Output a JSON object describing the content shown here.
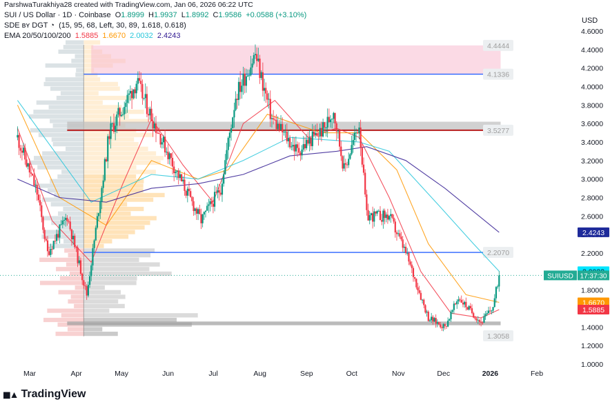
{
  "header": {
    "credit": "ParshwaTurakhiya28 created with TradingView.com, Jan 06, 2026 06:22 UTC",
    "symbol": "SUI / US Dollar · 1D · Coinbase",
    "o_label": "O",
    "o_value": "1.8999",
    "h_label": "H",
    "h_value": "1.9937",
    "l_label": "L",
    "l_value": "1.8992",
    "c_label": "C",
    "c_value": "1.9586",
    "change": "+0.0588 (+3.10%)",
    "sde_label": "SDE ʙʏ DGT ◔",
    "sde_params": "(15, 95, 68, Left, 30, 89, 1.618, 0.618)",
    "ema_label": "EMA 20/50/100/200",
    "ema_values": [
      {
        "value": "1.5885",
        "color": "#f23645"
      },
      {
        "value": "1.6670",
        "color": "#ff9800"
      },
      {
        "value": "2.0032",
        "color": "#26c6da"
      },
      {
        "value": "2.4243",
        "color": "#311b92"
      }
    ]
  },
  "footer": {
    "brand": "TradingView"
  },
  "chart_data": {
    "type": "candlestick",
    "y_axis_label": "USD",
    "y_ticks": [
      "4.6000",
      "4.4000",
      "4.2000",
      "4.0000",
      "3.8000",
      "3.6000",
      "3.4000",
      "3.2000",
      "3.0000",
      "2.8000",
      "2.6000",
      "2.4000",
      "2.2000",
      "2.0000",
      "1.8000",
      "1.6000",
      "1.4000",
      "1.2000",
      "1.0000"
    ],
    "ylim": [
      1.0,
      4.6
    ],
    "x_ticks": [
      "Mar",
      "Apr",
      "May",
      "Jun",
      "Jul",
      "Aug",
      "Sep",
      "Oct",
      "Nov",
      "Dec",
      "2026",
      "Feb"
    ],
    "levels": [
      {
        "label": "4.4444",
        "value": 4.4444
      },
      {
        "label": "4.1336",
        "value": 4.1336
      },
      {
        "label": "3.5277",
        "value": 3.5277
      },
      {
        "label": "2.2070",
        "value": 2.207
      },
      {
        "label": "1.3058",
        "value": 1.3058
      }
    ],
    "price_tags": [
      {
        "label": "2.4243",
        "value": 2.4243,
        "bg": "#1e2a9a",
        "fg": "#ffffff"
      },
      {
        "label": "2.0032",
        "value": 2.0032,
        "bg": "#00e5ff",
        "fg": "#131722"
      },
      {
        "label": "1.6670",
        "value": 1.667,
        "bg": "#ff9800",
        "fg": "#ffffff"
      },
      {
        "label": "1.5885",
        "value": 1.5885,
        "bg": "#f23645",
        "fg": "#ffffff"
      }
    ],
    "last_price": {
      "symbol": "SUIUSD",
      "countdown": "17:37:30",
      "value": 1.9586,
      "color": "#22ab94"
    },
    "colors": {
      "up": "#089981",
      "down": "#f23645",
      "ema20": "#f23645",
      "ema50": "#ff9800",
      "ema100": "#26c6da",
      "ema200": "#311b92",
      "level": "#2962ff"
    },
    "key_points": [
      {
        "date": "2025-02-20",
        "close": 3.45
      },
      {
        "date": "2025-03-05",
        "close": 2.85
      },
      {
        "date": "2025-03-12",
        "close": 2.2
      },
      {
        "date": "2025-03-25",
        "close": 2.6
      },
      {
        "date": "2025-04-07",
        "close": 1.75
      },
      {
        "date": "2025-04-22",
        "close": 3.5
      },
      {
        "date": "2025-05-10",
        "close": 4.05
      },
      {
        "date": "2025-05-22",
        "close": 3.6
      },
      {
        "date": "2025-06-05",
        "close": 3.1
      },
      {
        "date": "2025-06-22",
        "close": 2.55
      },
      {
        "date": "2025-07-05",
        "close": 2.9
      },
      {
        "date": "2025-07-15",
        "close": 3.9
      },
      {
        "date": "2025-07-28",
        "close": 4.35
      },
      {
        "date": "2025-08-08",
        "close": 3.65
      },
      {
        "date": "2025-08-25",
        "close": 3.3
      },
      {
        "date": "2025-09-12",
        "close": 3.55
      },
      {
        "date": "2025-09-18",
        "close": 3.75
      },
      {
        "date": "2025-09-25",
        "close": 3.1
      },
      {
        "date": "2025-10-05",
        "close": 3.6
      },
      {
        "date": "2025-10-10",
        "close": 2.6
      },
      {
        "date": "2025-10-25",
        "close": 2.6
      },
      {
        "date": "2025-11-05",
        "close": 2.2
      },
      {
        "date": "2025-11-20",
        "close": 1.5
      },
      {
        "date": "2025-12-01",
        "close": 1.4
      },
      {
        "date": "2025-12-10",
        "close": 1.72
      },
      {
        "date": "2025-12-25",
        "close": 1.45
      },
      {
        "date": "2026-01-02",
        "close": 1.62
      },
      {
        "date": "2026-01-06",
        "close": 1.9586
      }
    ],
    "ema_points": {
      "ema20": [
        [
          "2025-02-20",
          3.55
        ],
        [
          "2025-03-15",
          2.55
        ],
        [
          "2025-04-10",
          2.1
        ],
        [
          "2025-05-01",
          2.95
        ],
        [
          "2025-05-20",
          3.65
        ],
        [
          "2025-06-10",
          3.15
        ],
        [
          "2025-06-30",
          2.75
        ],
        [
          "2025-07-20",
          3.6
        ],
        [
          "2025-08-10",
          3.85
        ],
        [
          "2025-09-01",
          3.45
        ],
        [
          "2025-09-20",
          3.55
        ],
        [
          "2025-10-05",
          3.45
        ],
        [
          "2025-10-25",
          2.8
        ],
        [
          "2025-11-15",
          2.0
        ],
        [
          "2025-12-05",
          1.55
        ],
        [
          "2025-12-25",
          1.5
        ],
        [
          "2026-01-06",
          1.5885
        ]
      ],
      "ema50": [
        [
          "2025-02-20",
          3.8
        ],
        [
          "2025-03-20",
          2.8
        ],
        [
          "2025-04-20",
          2.5
        ],
        [
          "2025-05-20",
          3.2
        ],
        [
          "2025-06-20",
          3.0
        ],
        [
          "2025-07-10",
          3.1
        ],
        [
          "2025-08-05",
          3.7
        ],
        [
          "2025-09-10",
          3.5
        ],
        [
          "2025-10-05",
          3.5
        ],
        [
          "2025-10-30",
          3.1
        ],
        [
          "2025-11-20",
          2.3
        ],
        [
          "2025-12-15",
          1.75
        ],
        [
          "2026-01-06",
          1.667
        ]
      ],
      "ema100": [
        [
          "2025-02-20",
          3.85
        ],
        [
          "2025-04-10",
          2.75
        ],
        [
          "2025-05-20",
          3.05
        ],
        [
          "2025-06-20",
          3.0
        ],
        [
          "2025-07-20",
          3.2
        ],
        [
          "2025-08-20",
          3.45
        ],
        [
          "2025-10-05",
          3.4
        ],
        [
          "2025-10-25",
          3.3
        ],
        [
          "2025-11-25",
          2.75
        ],
        [
          "2025-12-20",
          2.3
        ],
        [
          "2026-01-06",
          2.0032
        ]
      ],
      "ema200": [
        [
          "2025-02-20",
          3.0
        ],
        [
          "2025-03-20",
          2.8
        ],
        [
          "2025-04-20",
          2.75
        ],
        [
          "2025-05-20",
          2.9
        ],
        [
          "2025-06-20",
          2.95
        ],
        [
          "2025-07-20",
          3.05
        ],
        [
          "2025-08-20",
          3.25
        ],
        [
          "2025-09-20",
          3.3
        ],
        [
          "2025-10-10",
          3.35
        ],
        [
          "2025-11-05",
          3.2
        ],
        [
          "2025-12-01",
          2.9
        ],
        [
          "2026-01-06",
          2.4243
        ]
      ]
    }
  }
}
